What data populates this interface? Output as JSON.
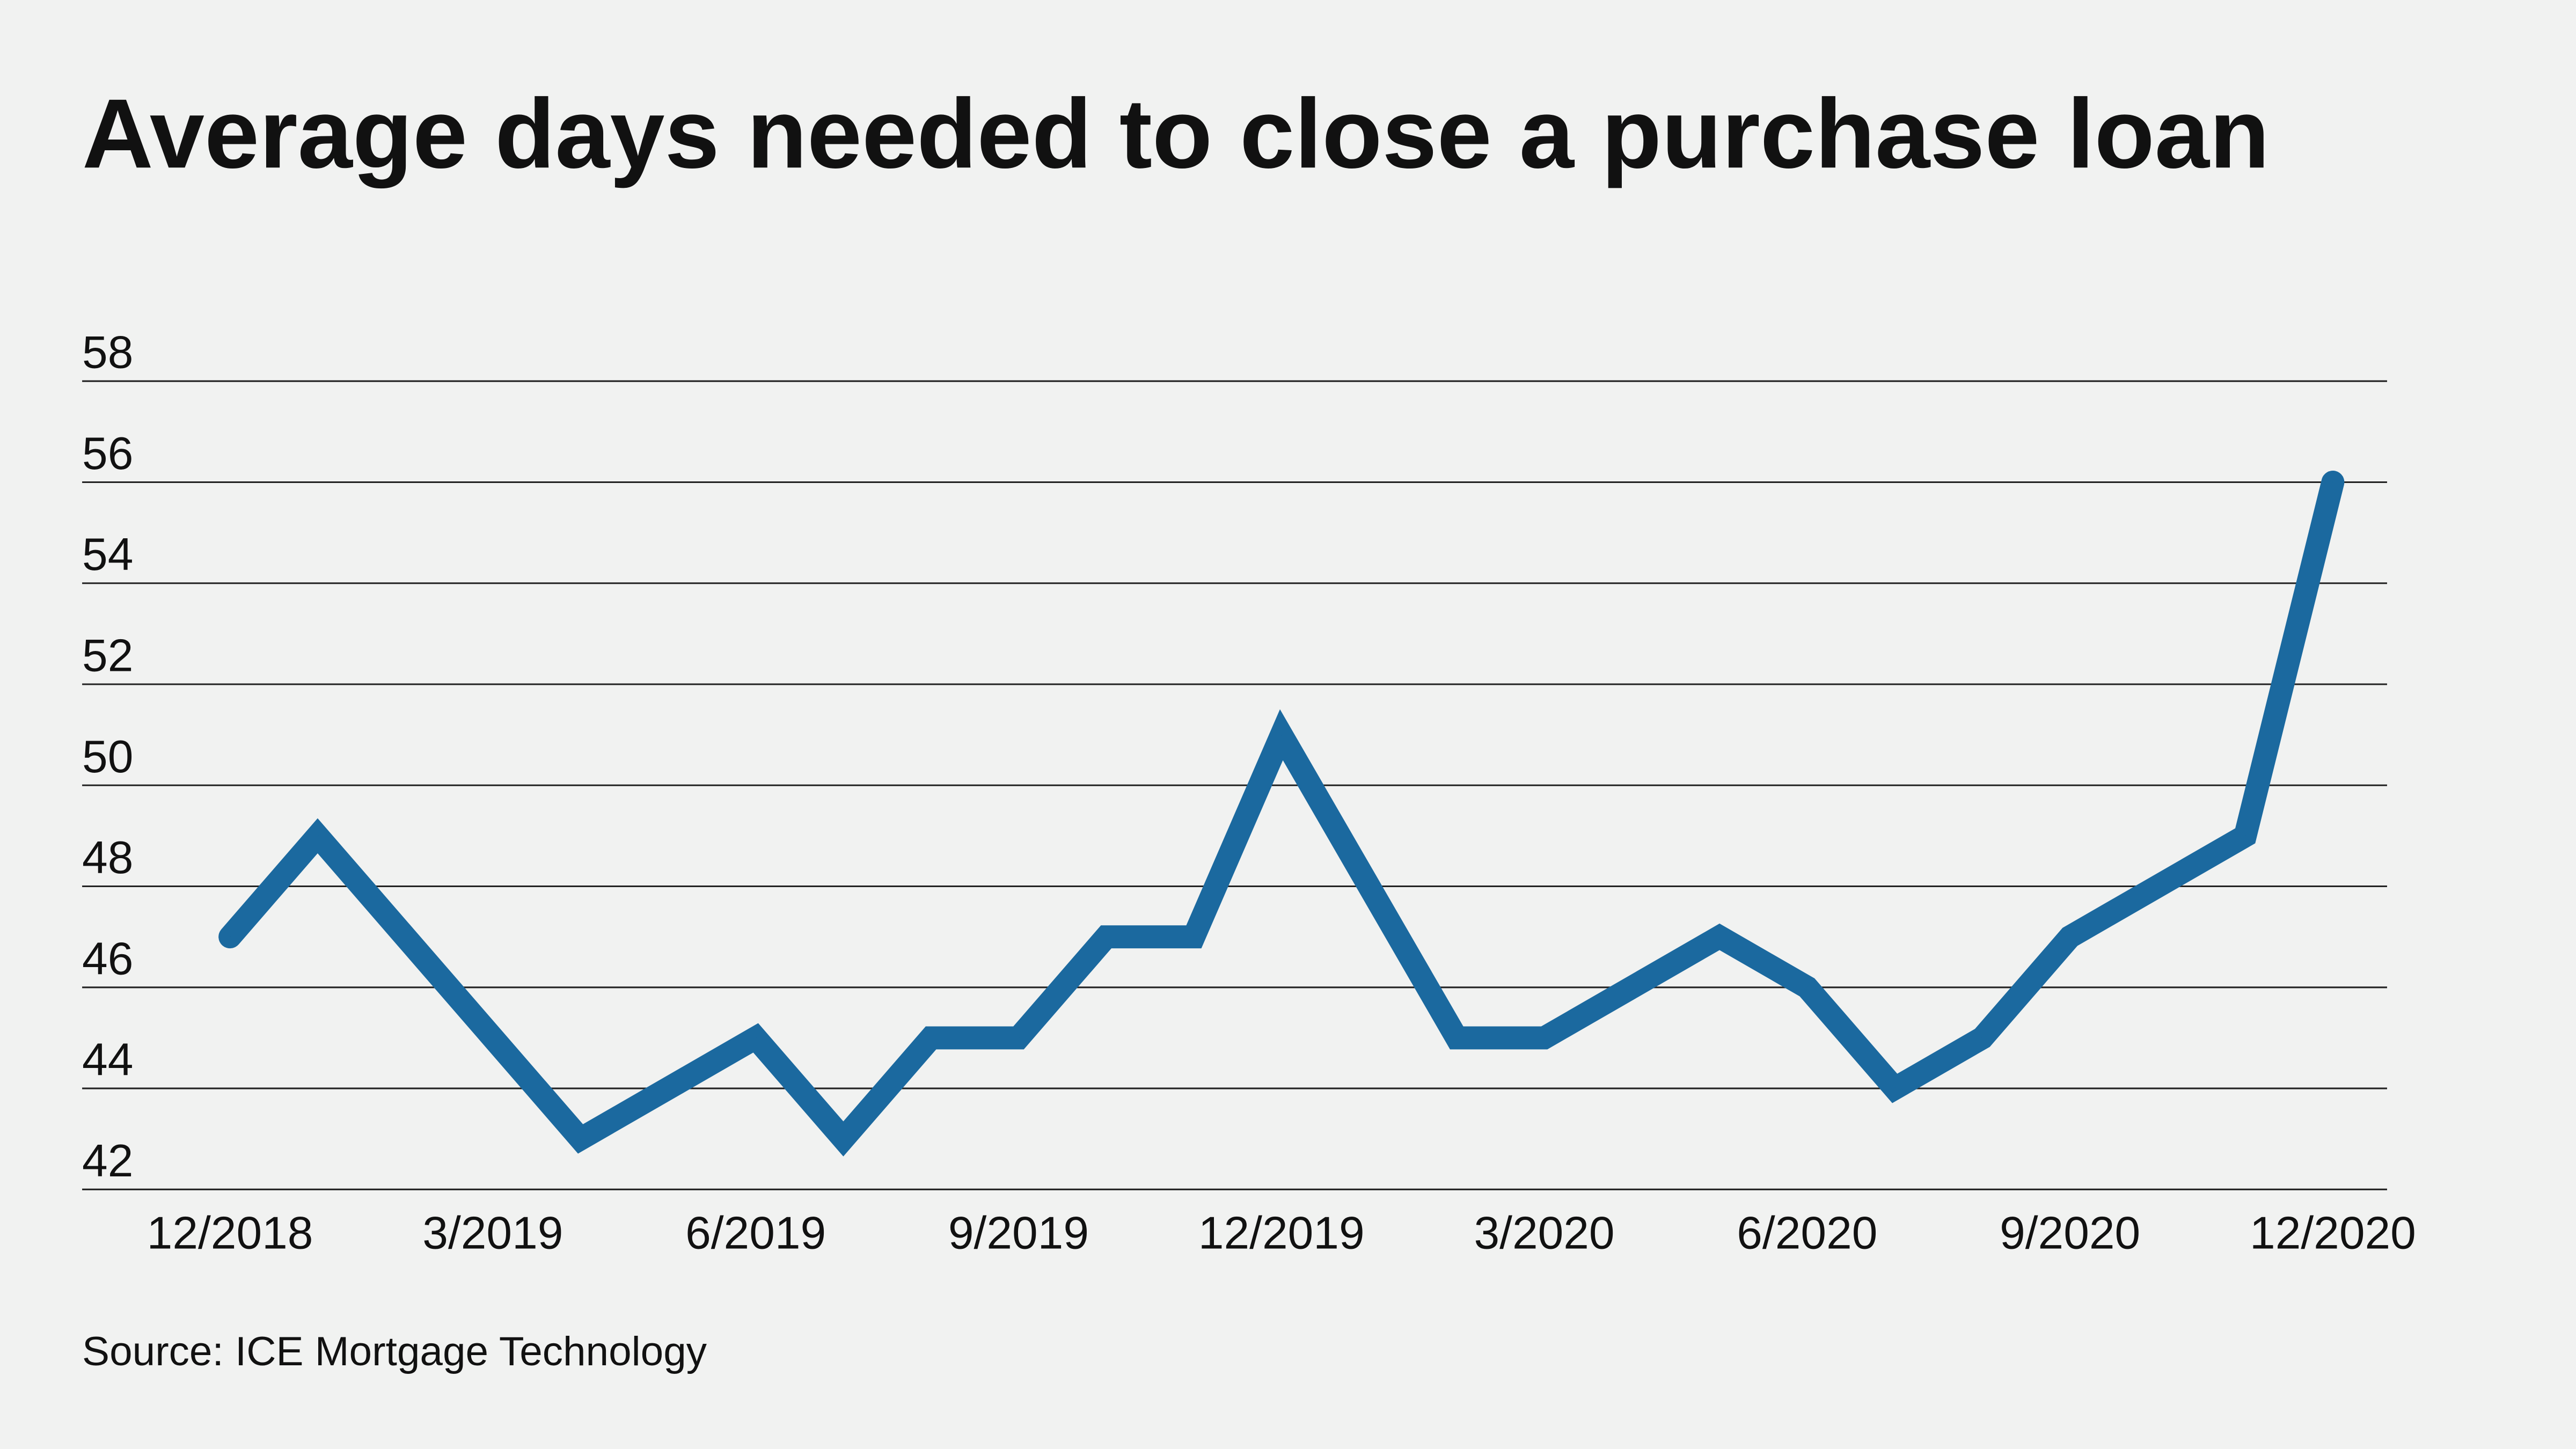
{
  "chart_data": {
    "type": "line",
    "title": "Average days needed to close a purchase loan",
    "source": "Source: ICE Mortgage Technology",
    "xlabel": "",
    "ylabel": "",
    "ylim": [
      42,
      58
    ],
    "yticks": [
      "58",
      "56",
      "54",
      "52",
      "50",
      "48",
      "46",
      "44",
      "42"
    ],
    "xtick_labels": [
      "12/2018",
      "3/2019",
      "6/2019",
      "9/2019",
      "12/2019",
      "3/2020",
      "6/2020",
      "9/2020",
      "12/2020"
    ],
    "grid": true,
    "line_color": "#1b699f",
    "x": [
      "12/2018",
      "1/2019",
      "2/2019",
      "3/2019",
      "4/2019",
      "5/2019",
      "6/2019",
      "7/2019",
      "8/2019",
      "9/2019",
      "10/2019",
      "11/2019",
      "12/2019",
      "1/2020",
      "2/2020",
      "3/2020",
      "4/2020",
      "5/2020",
      "6/2020",
      "7/2020",
      "8/2020",
      "9/2020",
      "10/2020",
      "11/2020",
      "12/2020"
    ],
    "values": [
      47,
      49,
      47,
      45,
      43,
      44,
      45,
      43,
      45,
      45,
      47,
      47,
      51,
      48,
      45,
      45,
      46,
      47,
      46,
      44,
      45,
      47,
      48,
      49,
      56
    ]
  }
}
